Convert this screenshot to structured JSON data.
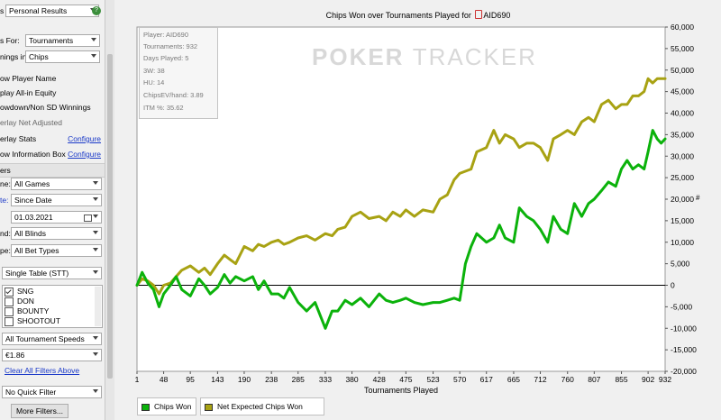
{
  "sidebar": {
    "top_dropdown": "Personal Results",
    "rows": [
      {
        "label": "s For:",
        "value": "Tournaments"
      },
      {
        "label": "nings in:",
        "value": "Chips"
      }
    ],
    "toggles": [
      {
        "label": "ow Player Name"
      },
      {
        "label": "play All-in Equity"
      },
      {
        "label": "owdown/Non SD Winnings"
      },
      {
        "label": "erlay Net Adjusted"
      }
    ],
    "configure_rows": [
      {
        "label": "erlay Stats",
        "link": "Configure"
      },
      {
        "label": "ow Information Box",
        "link": "Configure"
      }
    ],
    "filters_header": "ers",
    "filters": [
      {
        "label": "ne:",
        "value": "All Games"
      },
      {
        "label": "te:",
        "value": "Since Date"
      },
      {
        "label": "",
        "value": "01.03.2021"
      },
      {
        "label": "nd:",
        "value": "All Blinds"
      },
      {
        "label": "pe:",
        "value": "All Bet Types"
      }
    ],
    "table_type": "Single Table (STT)",
    "tournament_types": [
      {
        "label": "SNG",
        "checked": true
      },
      {
        "label": "DON",
        "checked": false
      },
      {
        "label": "BOUNTY",
        "checked": false
      },
      {
        "label": "SHOOTOUT",
        "checked": false
      }
    ],
    "speed": "All Tournament Speeds",
    "buyin": "€1.86",
    "clear_link": "Clear All Filters Above",
    "quick_filter": "No Quick Filter",
    "more_filters": "More Filters..."
  },
  "chart_data": {
    "type": "line",
    "title": "Chips Won over Tournaments Played for",
    "player": "AID690",
    "xlabel": "Tournaments Played",
    "ylabel": "#",
    "xlim": [
      1,
      932
    ],
    "ylim": [
      -20000,
      60000
    ],
    "x_ticks": [
      1,
      48,
      95,
      143,
      190,
      238,
      285,
      333,
      380,
      428,
      475,
      523,
      570,
      617,
      665,
      712,
      760,
      807,
      855,
      902,
      932
    ],
    "y_ticks": [
      "-20,000",
      "-15,000",
      "-10,000",
      "-5,000",
      "0",
      "5,000",
      "10,000",
      "15,000",
      "20,000",
      "25,000",
      "30,000",
      "35,000",
      "40,000",
      "45,000",
      "50,000",
      "55,000",
      "60,000"
    ],
    "y_tick_values": [
      -20000,
      -15000,
      -10000,
      -5000,
      0,
      5000,
      10000,
      15000,
      20000,
      25000,
      30000,
      35000,
      40000,
      45000,
      50000,
      55000,
      60000
    ],
    "grid": false,
    "legend_position": "bottom-left",
    "series": [
      {
        "name": "Chips Won",
        "color": "#0bb20b",
        "x": [
          1,
          10,
          20,
          30,
          40,
          48,
          60,
          70,
          80,
          95,
          110,
          120,
          130,
          143,
          155,
          165,
          175,
          190,
          205,
          215,
          225,
          238,
          250,
          260,
          270,
          285,
          300,
          315,
          333,
          345,
          355,
          368,
          380,
          395,
          410,
          428,
          440,
          452,
          465,
          475,
          490,
          505,
          523,
          535,
          548,
          560,
          570,
          580,
          590,
          600,
          617,
          630,
          640,
          650,
          665,
          675,
          688,
          700,
          712,
          725,
          735,
          748,
          760,
          772,
          785,
          797,
          807,
          820,
          832,
          845,
          855,
          865,
          875,
          885,
          895,
          902,
          910,
          918,
          925,
          932
        ],
        "y": [
          0,
          3000,
          500,
          -1000,
          -5000,
          -2000,
          0,
          2000,
          -1000,
          -2500,
          1500,
          0,
          -2000,
          -500,
          2500,
          500,
          2000,
          1000,
          2000,
          -1000,
          1000,
          -2000,
          -2000,
          -3000,
          -500,
          -4000,
          -6000,
          -4000,
          -10000,
          -6000,
          -6000,
          -3500,
          -4500,
          -3000,
          -5000,
          -2000,
          -3500,
          -4000,
          -3500,
          -3000,
          -4000,
          -4500,
          -4000,
          -4000,
          -3500,
          -3000,
          -3500,
          5000,
          9000,
          12000,
          10000,
          11000,
          14000,
          11000,
          10000,
          18000,
          16000,
          15000,
          13000,
          10000,
          16000,
          13000,
          12000,
          19000,
          16000,
          19000,
          20000,
          22000,
          24000,
          23000,
          27000,
          29000,
          27000,
          28000,
          27000,
          31000,
          36000,
          34000,
          33000,
          34000
        ]
      },
      {
        "name": "Net Expected Chips Won",
        "color": "#a8a213",
        "x": [
          1,
          10,
          20,
          30,
          40,
          48,
          60,
          70,
          80,
          95,
          110,
          120,
          130,
          143,
          155,
          165,
          175,
          190,
          205,
          215,
          225,
          238,
          250,
          260,
          270,
          285,
          300,
          315,
          333,
          345,
          355,
          368,
          380,
          395,
          410,
          428,
          440,
          452,
          465,
          475,
          490,
          505,
          523,
          535,
          548,
          560,
          570,
          580,
          590,
          600,
          617,
          630,
          640,
          650,
          665,
          675,
          688,
          700,
          712,
          725,
          735,
          748,
          760,
          772,
          785,
          797,
          807,
          820,
          832,
          845,
          855,
          865,
          875,
          885,
          895,
          902,
          910,
          918,
          925,
          932
        ],
        "y": [
          0,
          1500,
          1000,
          0,
          -2000,
          0,
          500,
          2000,
          3500,
          4500,
          3000,
          4000,
          2500,
          5000,
          7000,
          6000,
          5000,
          9000,
          8000,
          9500,
          9000,
          10000,
          10500,
          9500,
          10000,
          11000,
          11500,
          10500,
          12000,
          11500,
          13000,
          13500,
          16000,
          17000,
          15500,
          16000,
          15000,
          17000,
          16000,
          17500,
          16000,
          17500,
          17000,
          20000,
          21000,
          24500,
          26000,
          26500,
          27000,
          31000,
          32000,
          36000,
          33000,
          35000,
          34000,
          32000,
          33000,
          33000,
          32000,
          29000,
          34000,
          35000,
          36000,
          35000,
          38000,
          39000,
          38000,
          42000,
          43000,
          41000,
          42000,
          42000,
          44000,
          44000,
          45000,
          48000,
          47000,
          48000,
          48000,
          48000
        ]
      }
    ],
    "info_box": [
      "Player: AID690",
      "Tournaments: 932",
      "Days Played: 5",
      "3W: 38",
      "HU: 14",
      "ChipsEV/hand: 3.89",
      "ITM %: 35.62"
    ],
    "watermark": [
      "POKER",
      "TRACKER"
    ]
  }
}
